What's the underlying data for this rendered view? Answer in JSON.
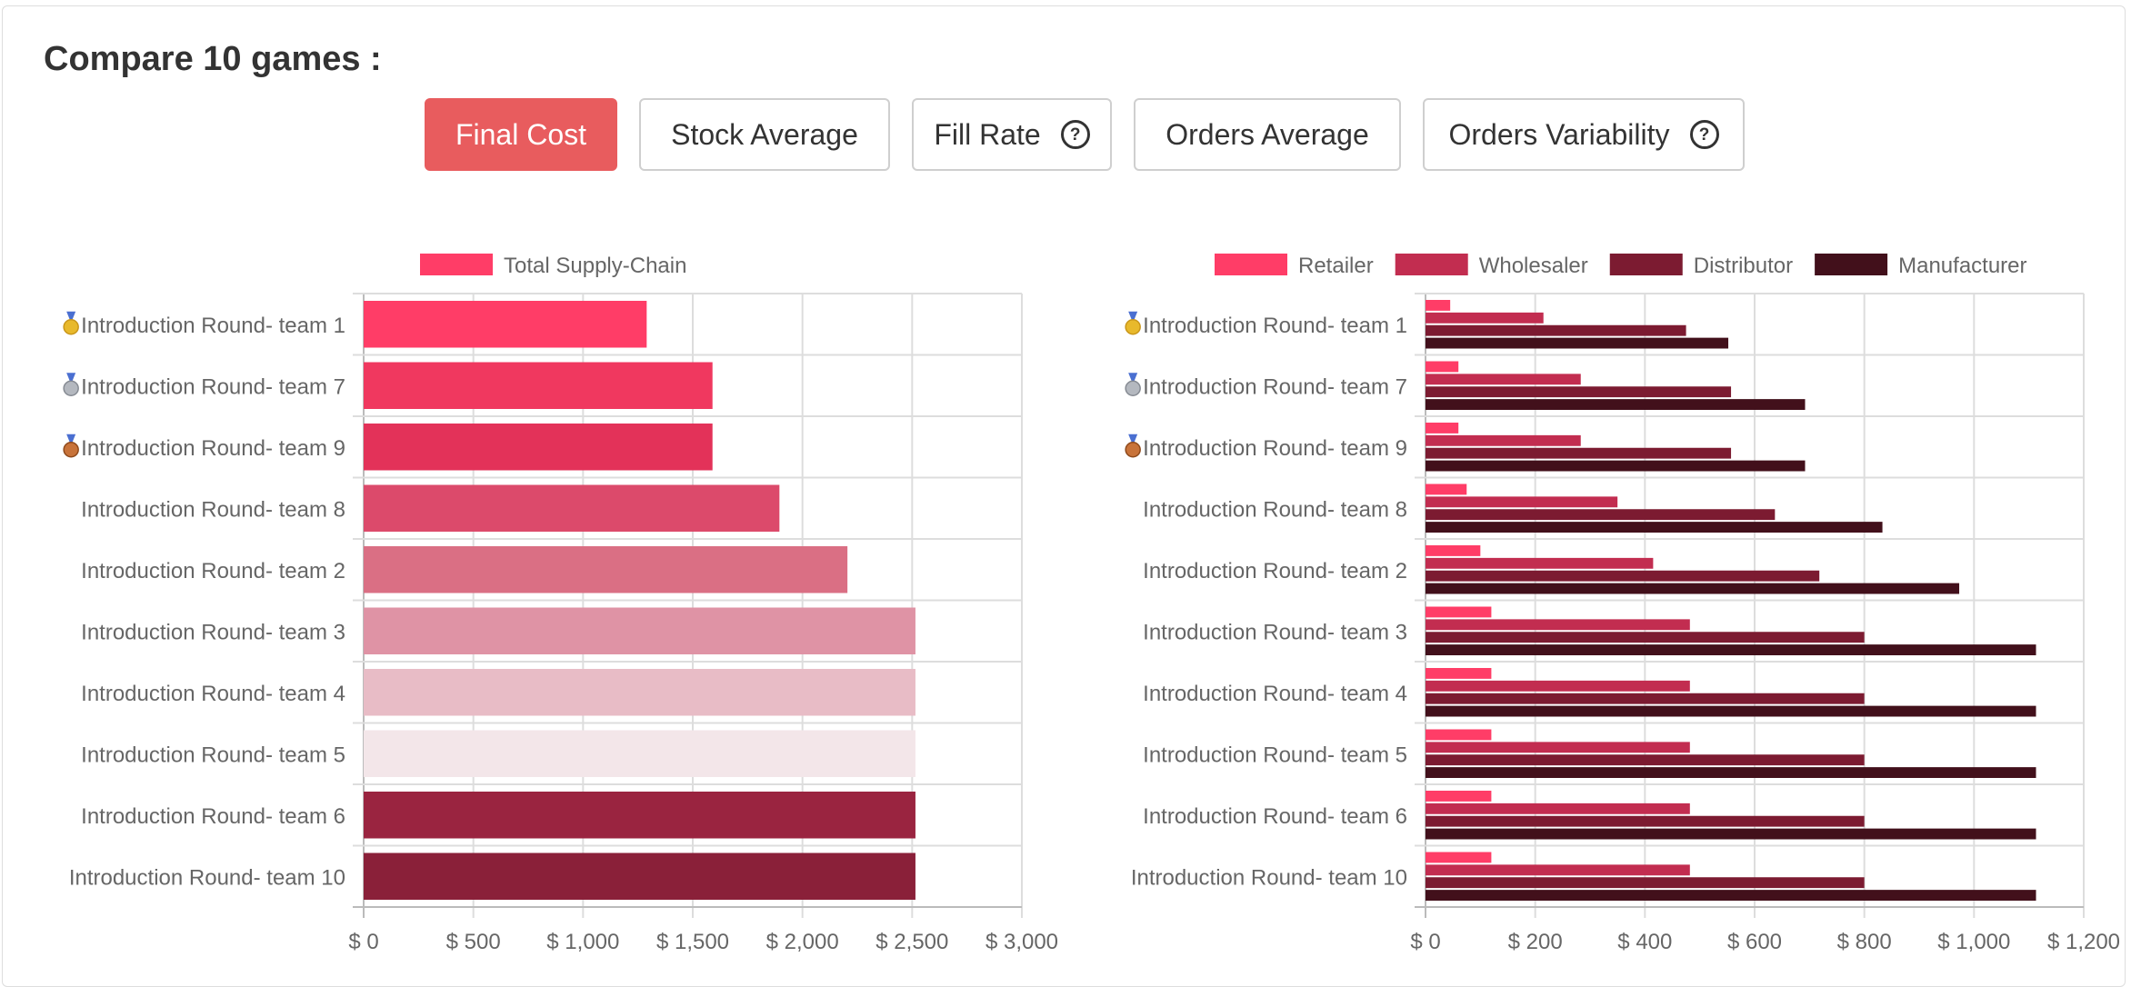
{
  "heading": "Compare 10 games :",
  "tabs": [
    {
      "label": "Final Cost",
      "help": false,
      "active": true
    },
    {
      "label": "Stock Average",
      "help": false,
      "active": false
    },
    {
      "label": "Fill Rate",
      "help": true,
      "active": false
    },
    {
      "label": "Orders Average",
      "help": false,
      "active": false
    },
    {
      "label": "Orders Variability",
      "help": true,
      "active": false
    }
  ],
  "chart_data": [
    {
      "type": "bar",
      "orientation": "horizontal",
      "categories": [
        "Introduction Round- team 1",
        "Introduction Round- team 7",
        "Introduction Round- team 9",
        "Introduction Round- team 8",
        "Introduction Round- team 2",
        "Introduction Round- team 3",
        "Introduction Round- team 4",
        "Introduction Round- team 5",
        "Introduction Round- team 6",
        "Introduction Round- team 10"
      ],
      "medals": [
        "gold",
        "silver",
        "bronze",
        "",
        "",
        "",
        "",
        "",
        "",
        ""
      ],
      "series": [
        {
          "name": "Total Supply-Chain",
          "values": [
            1290,
            1590,
            1590,
            1895,
            2205,
            2515,
            2515,
            2515,
            2515,
            2515
          ],
          "color": "#ff3d67"
        }
      ],
      "bar_colors": [
        "#ff3d67",
        "#f0385f",
        "#e33259",
        "#dc4a6b",
        "#da6f84",
        "#df93a5",
        "#e8bcc6",
        "#f3e6e9",
        "#9a2440",
        "#8a2039"
      ],
      "xlim": [
        0,
        3000
      ],
      "ticks": [
        0,
        500,
        1000,
        1500,
        2000,
        2500,
        3000
      ],
      "tick_labels": [
        "$ 0",
        "$ 500",
        "$ 1,000",
        "$ 1,500",
        "$ 2,000",
        "$ 2,500",
        "$ 3,000"
      ],
      "grid": true,
      "legend": "top"
    },
    {
      "type": "bar",
      "orientation": "horizontal",
      "categories": [
        "Introduction Round- team 1",
        "Introduction Round- team 7",
        "Introduction Round- team 9",
        "Introduction Round- team 8",
        "Introduction Round- team 2",
        "Introduction Round- team 3",
        "Introduction Round- team 4",
        "Introduction Round- team 5",
        "Introduction Round- team 6",
        "Introduction Round- team 10"
      ],
      "medals": [
        "gold",
        "silver",
        "bronze",
        "",
        "",
        "",
        "",
        "",
        "",
        ""
      ],
      "series": [
        {
          "name": "Retailer",
          "values": [
            45,
            60,
            60,
            75,
            100,
            120,
            120,
            120,
            120,
            120
          ],
          "color": "#ff3d67"
        },
        {
          "name": "Wholesaler",
          "values": [
            215,
            283,
            283,
            350,
            415,
            482,
            482,
            482,
            482,
            482
          ],
          "color": "#c22d50"
        },
        {
          "name": "Distributor",
          "values": [
            475,
            557,
            557,
            637,
            718,
            800,
            800,
            800,
            800,
            800
          ],
          "color": "#7c1b31"
        },
        {
          "name": "Manufacturer",
          "values": [
            552,
            692,
            692,
            833,
            973,
            1113,
            1113,
            1113,
            1113,
            1113
          ],
          "color": "#42101b"
        }
      ],
      "xlim": [
        0,
        1200
      ],
      "ticks": [
        0,
        200,
        400,
        600,
        800,
        1000,
        1200
      ],
      "tick_labels": [
        "$ 0",
        "$ 200",
        "$ 400",
        "$ 600",
        "$ 800",
        "$ 1,000",
        "$ 1,200"
      ],
      "grid": true,
      "legend": "top"
    }
  ]
}
